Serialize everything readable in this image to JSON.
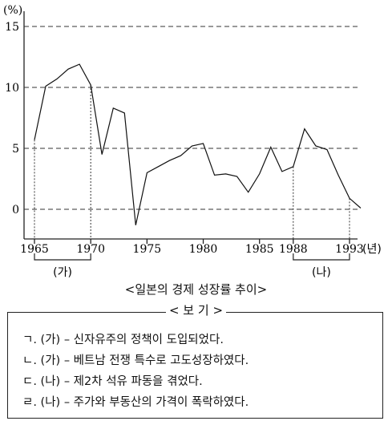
{
  "chart_data": {
    "type": "line",
    "title": "<일본의 경제 성장률 추이>",
    "y_unit": "(%)",
    "x_unit": "(년)",
    "ylim": [
      -2,
      16
    ],
    "xlim": [
      1964,
      1995
    ],
    "y_ticks": [
      0,
      5,
      10,
      15
    ],
    "x_ticks": [
      1965,
      1970,
      1975,
      1980,
      1985,
      1988,
      1993
    ],
    "grid": "horizontal dashed at y ticks",
    "points": [
      [
        1965,
        5.7
      ],
      [
        1966,
        10.1
      ],
      [
        1967,
        10.7
      ],
      [
        1968,
        11.5
      ],
      [
        1969,
        11.9
      ],
      [
        1970,
        10.2
      ],
      [
        1971,
        4.5
      ],
      [
        1972,
        8.3
      ],
      [
        1973,
        7.9
      ],
      [
        1974,
        -1.3
      ],
      [
        1975,
        3.0
      ],
      [
        1976,
        3.5
      ],
      [
        1977,
        4.0
      ],
      [
        1978,
        4.4
      ],
      [
        1979,
        5.2
      ],
      [
        1980,
        5.4
      ],
      [
        1981,
        2.8
      ],
      [
        1982,
        2.9
      ],
      [
        1983,
        2.7
      ],
      [
        1984,
        1.4
      ],
      [
        1985,
        2.9
      ],
      [
        1986,
        5.1
      ],
      [
        1987,
        3.1
      ],
      [
        1988,
        3.5
      ],
      [
        1989,
        6.6
      ],
      [
        1990,
        5.2
      ],
      [
        1991,
        4.9
      ],
      [
        1992,
        2.8
      ],
      [
        1993,
        0.9
      ],
      [
        1994,
        0.1
      ]
    ],
    "periods": [
      {
        "label": "(가)",
        "from": 1965,
        "to": 1970
      },
      {
        "label": "(나)",
        "from": 1988,
        "to": 1993
      }
    ]
  },
  "legend": {
    "title": "< 보 기 >",
    "items": [
      "ㄱ. (가) – 신자유주의 정책이 도입되었다.",
      "ㄴ. (가) – 베트남 전쟁 특수로 고도성장하였다.",
      "ㄷ. (나) – 제2차 석유 파동을 겪었다.",
      "ㄹ. (나) – 주가와 부동산의 가격이 폭락하였다."
    ]
  }
}
